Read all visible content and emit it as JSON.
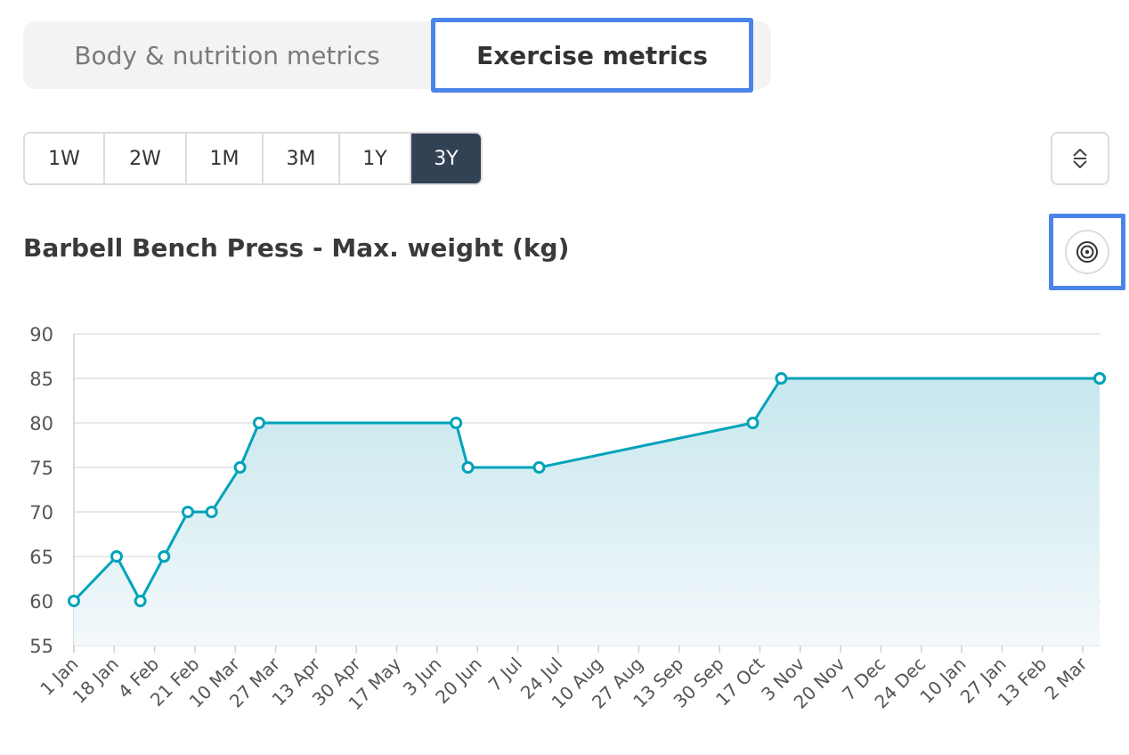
{
  "tabs": {
    "body_label": "Body & nutrition metrics",
    "exercise_label": "Exercise metrics"
  },
  "ranges": [
    "1W",
    "2W",
    "1M",
    "3M",
    "1Y",
    "3Y"
  ],
  "selected_range": "3Y",
  "icons": {
    "sort": "sort-arrows-icon",
    "target": "target-icon"
  },
  "colors": {
    "line": "#00a3b8",
    "selected_range_bg": "#334155",
    "highlight": "#4a84e8"
  },
  "chart_data": {
    "type": "area",
    "title": "Barbell Bench Press - Max. weight (kg)",
    "x": [
      "1 Jan",
      "19 Jan",
      "29 Jan",
      "8 Feb",
      "18 Feb",
      "28 Feb",
      "12 Mar",
      "20 Mar",
      "11 Jun",
      "16 Jun",
      "16 Jul",
      "14 Oct",
      "26 Oct",
      "10 Mar",
      "13 Mar"
    ],
    "y": [
      60,
      65,
      60,
      65,
      70,
      70,
      75,
      80,
      80,
      75,
      75,
      80,
      85,
      85,
      85
    ],
    "ylim": [
      55,
      90
    ],
    "yticks": [
      55,
      60,
      65,
      70,
      75,
      80,
      85,
      90
    ],
    "xtick_labels": [
      "1 Jan",
      "18 Jan",
      "4 Feb",
      "21 Feb",
      "10 Mar",
      "27 Mar",
      "13 Apr",
      "30 Apr",
      "17 May",
      "3 Jun",
      "20 Jun",
      "7 Jul",
      "24 Jul",
      "10 Aug",
      "27 Aug",
      "13 Sep",
      "30 Sep",
      "17 Oct",
      "3 Nov",
      "20 Nov",
      "7 Dec",
      "24 Dec",
      "10 Jan",
      "27 Jan",
      "13 Feb",
      "2 Mar"
    ],
    "grid": true
  }
}
